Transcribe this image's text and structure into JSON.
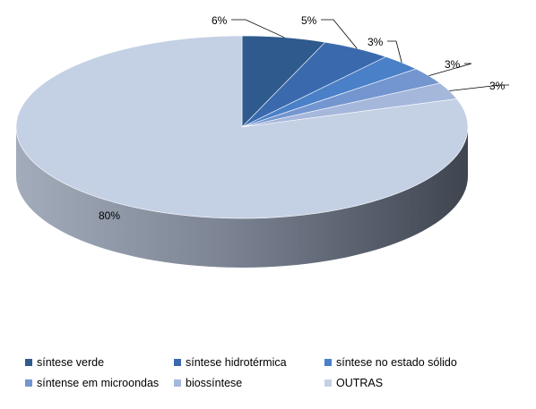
{
  "chart_data": {
    "type": "pie",
    "title": "",
    "three_d": true,
    "legend_position": "bottom",
    "categories": [
      "síntese verde",
      "síntese hidrotérmica",
      "síntese no estado sólido",
      "síntense em microondas",
      "biossíntese",
      "OUTRAS"
    ],
    "values": [
      6,
      5,
      3,
      3,
      3,
      80
    ],
    "labels": [
      "6%",
      "5%",
      "3%",
      "3%",
      "3%",
      "80%"
    ],
    "colors": [
      "#2f5a8e",
      "#3a6aad",
      "#4a80c8",
      "#7496d0",
      "#a6b7dc",
      "#c4d0e4"
    ]
  }
}
